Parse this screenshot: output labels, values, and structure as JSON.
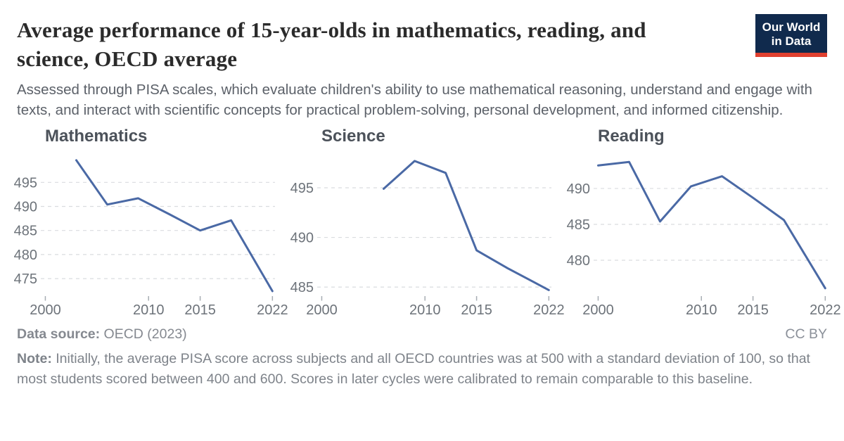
{
  "header": {
    "title": "Average performance of 15-year-olds in mathematics, reading, and science, OECD average",
    "subtitle": "Assessed through PISA scales, which evaluate children's ability to use mathematical reasoning, understand and engage with texts, and interact with scientific concepts for practical problem-solving, personal development, and informed citizenship.",
    "logo": {
      "line1": "Our World",
      "line2": "in Data"
    }
  },
  "footer": {
    "source_label": "Data source:",
    "source_value": "OECD (2023)",
    "license": "CC BY",
    "note_label": "Note:",
    "note_text": "Initially, the average PISA score across subjects and all OECD countries was at 500 with a standard deviation of 100, so that most students scored between 400 and 600. Scores in later cycles were calibrated to remain comparable to this baseline."
  },
  "colors": {
    "line": "#4a69a5",
    "grid": "#d9dcdf",
    "axis_text": "#6d737a",
    "tick_mark": "#a7adb3",
    "logo_bg": "#102a4d",
    "logo_bar": "#e0402f"
  },
  "chart_data": [
    {
      "type": "line",
      "title": "Mathematics",
      "x": [
        2003,
        2006,
        2009,
        2012,
        2015,
        2018,
        2022
      ],
      "values": [
        499.6,
        490.4,
        491.7,
        488.4,
        485.0,
        487.1,
        472.4
      ],
      "xticks": [
        2000,
        2010,
        2015,
        2022
      ],
      "yticks": [
        475,
        480,
        485,
        490,
        495
      ],
      "xlim": [
        1999.56,
        2022.25
      ],
      "ylim": [
        471.8,
        500.6
      ],
      "grid": true,
      "xlabel": "",
      "ylabel": ""
    },
    {
      "type": "line",
      "title": "Science",
      "x": [
        2006,
        2009,
        2012,
        2015,
        2018,
        2022
      ],
      "values": [
        494.9,
        497.7,
        496.5,
        488.7,
        486.9,
        484.7
      ],
      "xticks": [
        2000,
        2010,
        2015,
        2022
      ],
      "yticks": [
        485,
        490,
        495
      ],
      "xlim": [
        1999.56,
        2022.25
      ],
      "ylim": [
        484.3,
        498.26
      ],
      "grid": true,
      "xlabel": "",
      "ylabel": ""
    },
    {
      "type": "line",
      "title": "Reading",
      "x": [
        2000,
        2003,
        2006,
        2009,
        2012,
        2015,
        2018,
        2022
      ],
      "values": [
        493.2,
        493.7,
        485.4,
        490.3,
        491.7,
        488.7,
        485.6,
        476.1
      ],
      "xticks": [
        2000,
        2010,
        2015,
        2022
      ],
      "yticks": [
        480,
        485,
        490
      ],
      "xlim": [
        1999.56,
        2022.25
      ],
      "ylim": [
        475.3,
        494.6
      ],
      "grid": true,
      "xlabel": "",
      "ylabel": ""
    }
  ]
}
